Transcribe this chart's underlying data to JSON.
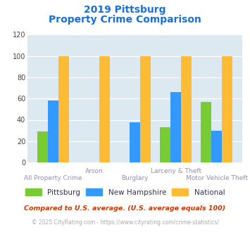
{
  "title_line1": "2019 Pittsburg",
  "title_line2": "Property Crime Comparison",
  "categories": [
    "All Property Crime",
    "Arson",
    "Burglary",
    "Larceny & Theft",
    "Motor Vehicle Theft"
  ],
  "pittsburg": [
    29,
    0,
    0,
    33,
    57
  ],
  "new_hampshire": [
    58,
    0,
    38,
    66,
    30
  ],
  "national": [
    100,
    100,
    100,
    100,
    100
  ],
  "color_pittsburg": "#77cc33",
  "color_new_hampshire": "#3399ff",
  "color_national": "#ffbb33",
  "ylim": [
    0,
    120
  ],
  "yticks": [
    0,
    20,
    40,
    60,
    80,
    100,
    120
  ],
  "bg_color": "#dce9f0",
  "title_color": "#1a6fd4",
  "xlabel_color": "#9988bb",
  "legend_color": "#333355",
  "footnote1": "Compared to U.S. average. (U.S. average equals 100)",
  "footnote2": "© 2025 CityRating.com - https://www.cityrating.com/crime-statistics/",
  "footnote1_color": "#cc3300",
  "footnote2_color": "#aaaaaa",
  "url_color": "#3399cc",
  "legend_label_pittsburg": "Pittsburg",
  "legend_label_nh": "New Hampshire",
  "legend_label_national": "National"
}
